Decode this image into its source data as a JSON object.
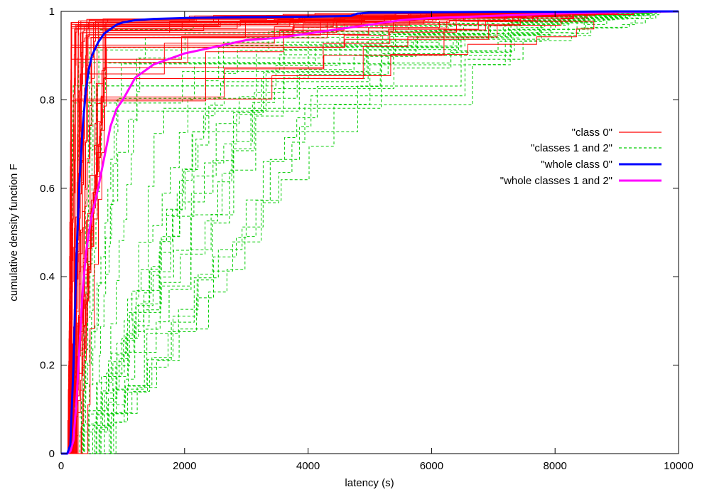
{
  "chart_data": {
    "type": "line",
    "title": "",
    "xlabel": "latency (s)",
    "ylabel": "cumulative density function F",
    "xlim": [
      0,
      10000
    ],
    "ylim": [
      0,
      1
    ],
    "x_ticks": [
      0,
      2000,
      4000,
      6000,
      8000,
      10000
    ],
    "y_ticks": [
      0,
      0.2,
      0.4,
      0.6,
      0.8,
      1
    ],
    "x_tick_labels": [
      "0",
      "2000",
      "4000",
      "6000",
      "8000",
      "10000"
    ],
    "y_tick_labels": [
      "0",
      "0.2",
      "0.4",
      "0.6",
      "0.8",
      "1"
    ],
    "grid": false,
    "legend_position": "right-middle",
    "legend": [
      "\"class 0\"",
      "\"classes 1 and 2\"",
      "\"whole class 0\"",
      "\"whole classes 1 and 2\""
    ],
    "series": [
      {
        "name": "\"whole class 0\"",
        "color": "#0000ff",
        "style": "solid-thick",
        "x": [
          0,
          100,
          150,
          200,
          250,
          300,
          350,
          400,
          450,
          500,
          600,
          700,
          800,
          900,
          1000,
          1200,
          1500,
          2000,
          3000,
          4000,
          4500,
          4700,
          4800,
          5000,
          6000,
          7000,
          8000,
          9000,
          10000
        ],
        "y": [
          0,
          0,
          0.02,
          0.2,
          0.45,
          0.62,
          0.74,
          0.82,
          0.87,
          0.9,
          0.93,
          0.95,
          0.96,
          0.97,
          0.975,
          0.98,
          0.983,
          0.985,
          0.987,
          0.988,
          0.989,
          0.99,
          0.995,
          0.997,
          0.998,
          0.999,
          0.999,
          1.0,
          1.0
        ]
      },
      {
        "name": "\"whole classes 1 and 2\"",
        "color": "#ff00ff",
        "style": "solid-thick",
        "x": [
          0,
          100,
          150,
          200,
          250,
          300,
          350,
          400,
          450,
          500,
          600,
          700,
          800,
          900,
          1000,
          1200,
          1500,
          2000,
          2500,
          3000,
          3500,
          4000,
          4500,
          5000,
          5500,
          6000,
          7000,
          8000,
          9000,
          10000
        ],
        "y": [
          0,
          0,
          0.005,
          0.03,
          0.12,
          0.25,
          0.37,
          0.45,
          0.5,
          0.54,
          0.6,
          0.67,
          0.74,
          0.78,
          0.8,
          0.85,
          0.88,
          0.905,
          0.92,
          0.935,
          0.94,
          0.95,
          0.96,
          0.97,
          0.98,
          0.985,
          0.99,
          0.995,
          0.998,
          1.0
        ]
      }
    ],
    "sample_series_groups": [
      {
        "name": "\"class 0\"",
        "color": "#ff0000",
        "style": "solid-thin",
        "count": 40,
        "typical_knee_range_s": [
          150,
          800
        ],
        "upper_plateau_range": [
          0.94,
          0.99
        ],
        "max_latency_s": 9300
      },
      {
        "name": "\"classes 1 and 2\"",
        "color": "#00cc00",
        "style": "dashed-thin",
        "count": 30,
        "typical_knee_range_s": [
          200,
          4700
        ],
        "upper_plateau_range": [
          0.78,
          0.98
        ],
        "max_latency_s": 9900
      }
    ]
  },
  "legend_entries": [
    {
      "label": "\"class 0\"",
      "color": "#ff0000",
      "dash": "",
      "width": 1.2
    },
    {
      "label": "\"classes 1 and 2\"",
      "color": "#00cc00",
      "dash": "4,3",
      "width": 1.2
    },
    {
      "label": "\"whole class 0\"",
      "color": "#0000ff",
      "dash": "",
      "width": 3
    },
    {
      "label": "\"whole classes 1 and 2\"",
      "color": "#ff00ff",
      "dash": "",
      "width": 3
    }
  ]
}
